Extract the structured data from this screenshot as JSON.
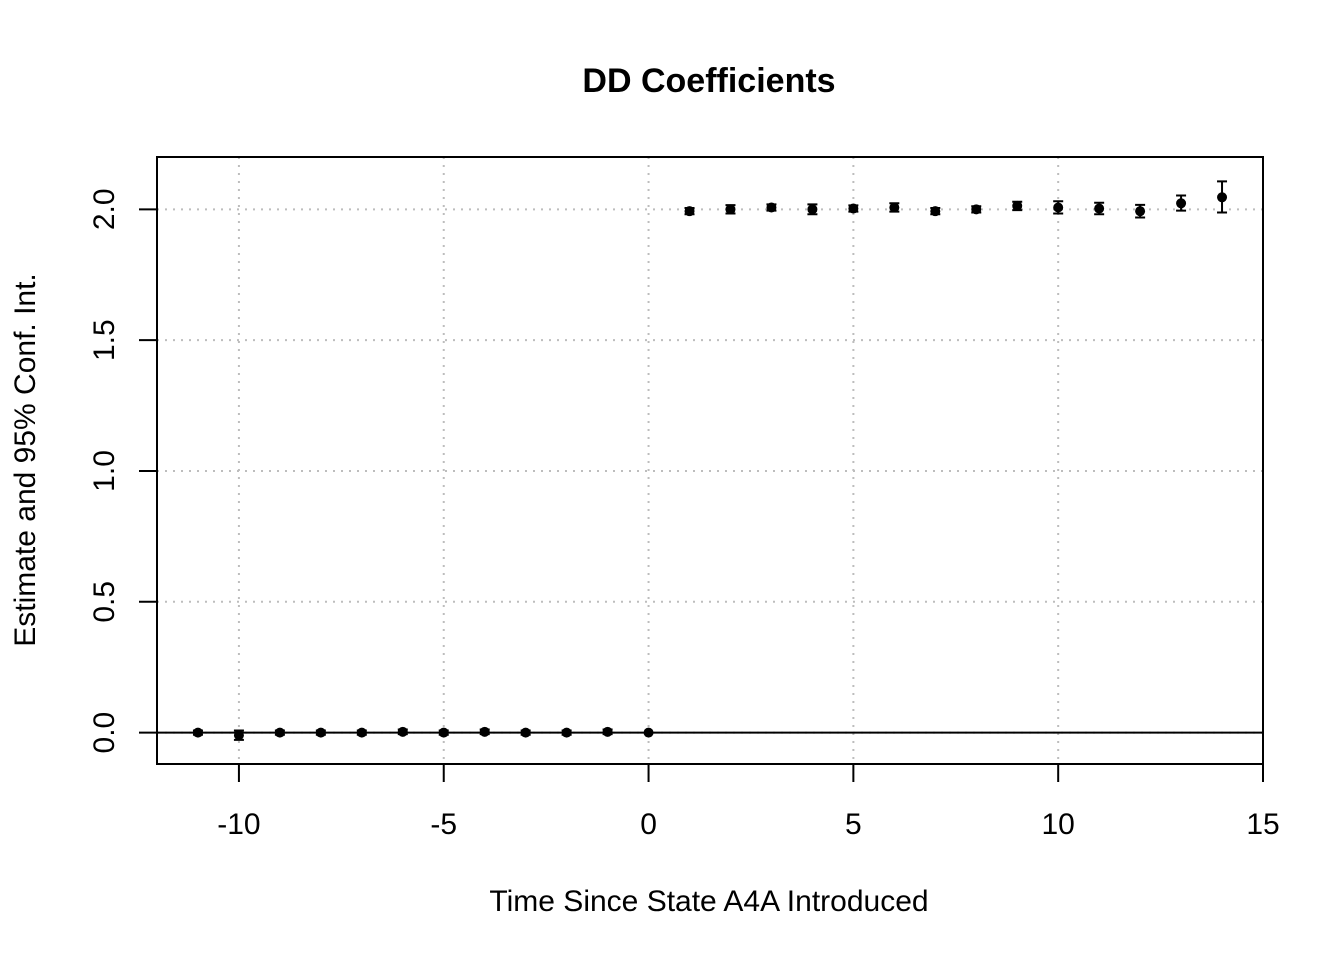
{
  "chart_data": {
    "type": "scatter",
    "title": "DD Coefficients",
    "xlabel": "Time Since State A4A Introduced",
    "ylabel": "Estimate and 95% Conf. Int.",
    "xlim": [
      -12,
      15
    ],
    "ylim": [
      -0.12,
      2.2
    ],
    "xticks": [
      -10,
      -5,
      0,
      5,
      10,
      15
    ],
    "xtick_labels": [
      "-10",
      "-5",
      "0",
      "5",
      "10",
      "15"
    ],
    "yticks": [
      0.0,
      0.5,
      1.0,
      1.5,
      2.0
    ],
    "ytick_labels": [
      "0.0",
      "0.5",
      "1.0",
      "1.5",
      "2.0"
    ],
    "grid": true,
    "reference_line_y": 0,
    "series": [
      {
        "x": [
          -11,
          -10,
          -9,
          -8,
          -7,
          -6,
          -5,
          -4,
          -3,
          -2,
          -1,
          0,
          1,
          2,
          3,
          4,
          5,
          6,
          7,
          8,
          9,
          10,
          11,
          12,
          13,
          14
        ],
        "y": [
          0.0,
          -0.01,
          0.0,
          0.0,
          0.0,
          0.003,
          0.0,
          0.003,
          0.0,
          0.0,
          0.003,
          0.0,
          1.993,
          2.0,
          2.007,
          2.0,
          2.003,
          2.007,
          1.993,
          2.0,
          2.013,
          2.007,
          2.003,
          1.993,
          2.023,
          2.046
        ],
        "lower": [
          -0.008,
          -0.028,
          -0.008,
          -0.008,
          -0.008,
          -0.006,
          -0.008,
          -0.006,
          -0.008,
          -0.008,
          -0.006,
          0.0,
          1.981,
          1.984,
          1.995,
          1.981,
          1.991,
          1.991,
          1.981,
          1.988,
          1.997,
          1.984,
          1.981,
          1.969,
          1.995,
          1.988
        ],
        "upper": [
          0.008,
          0.008,
          0.008,
          0.008,
          0.008,
          0.012,
          0.008,
          0.012,
          0.008,
          0.008,
          0.012,
          0.0,
          2.005,
          2.016,
          2.019,
          2.019,
          2.015,
          2.023,
          2.005,
          2.012,
          2.029,
          2.031,
          2.025,
          2.017,
          2.053,
          2.107
        ]
      }
    ]
  }
}
